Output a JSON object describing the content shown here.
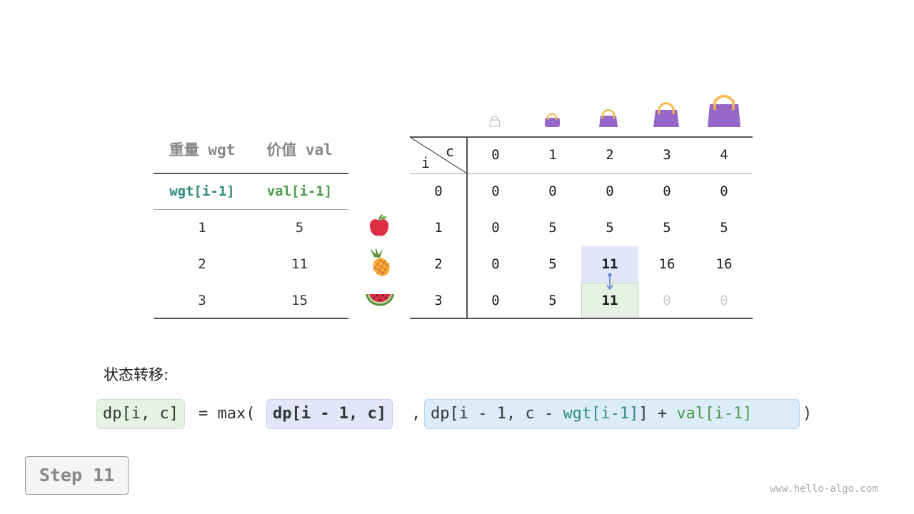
{
  "left_table": {
    "headers": [
      "重量 wgt",
      "价值 val"
    ],
    "subheaders": [
      "wgt[i-1]",
      "val[i-1]"
    ],
    "rows": [
      [
        "1",
        "5"
      ],
      [
        "2",
        "11"
      ],
      [
        "3",
        "15"
      ]
    ],
    "items": [
      "apple-icon",
      "pineapple-icon",
      "watermelon-icon"
    ]
  },
  "dp_table": {
    "corner_c": "c",
    "corner_i": "i",
    "col_headers": [
      "0",
      "1",
      "2",
      "3",
      "4"
    ],
    "row_headers": [
      "0",
      "1",
      "2",
      "3"
    ],
    "rows": [
      [
        "0",
        "0",
        "0",
        "0",
        "0"
      ],
      [
        "0",
        "5",
        "5",
        "5",
        "5"
      ],
      [
        "0",
        "5",
        "11",
        "16",
        "16"
      ],
      [
        "0",
        "5",
        "11",
        "0",
        "0"
      ]
    ],
    "bag_icons": [
      "bag-capacity-0-icon",
      "bag-capacity-1-icon",
      "bag-capacity-2-icon",
      "bag-capacity-3-icon",
      "bag-capacity-4-icon"
    ]
  },
  "colors": {
    "teal": "#2e8b80",
    "green": "#4a9a4a",
    "bag": "#9467c9",
    "handle": "#f5b84a",
    "highlight_blue": "#e2e6f8",
    "highlight_green": "#e6f2e4",
    "formula_cyan": "#dcecf9"
  },
  "transition": {
    "label": "状态转移:",
    "lhs": "dp[i, c]",
    "eq": "= max(",
    "opt1": "dp[i - 1, c]",
    "comma": ",",
    "opt2_a": "dp[i - 1, c - ",
    "opt2_wgt": "wgt[i-1]",
    "opt2_b": "] + ",
    "opt2_val": "val[i-1]",
    "close": ")"
  },
  "step_label": "Step 11",
  "watermark": "www.hello-algo.com"
}
